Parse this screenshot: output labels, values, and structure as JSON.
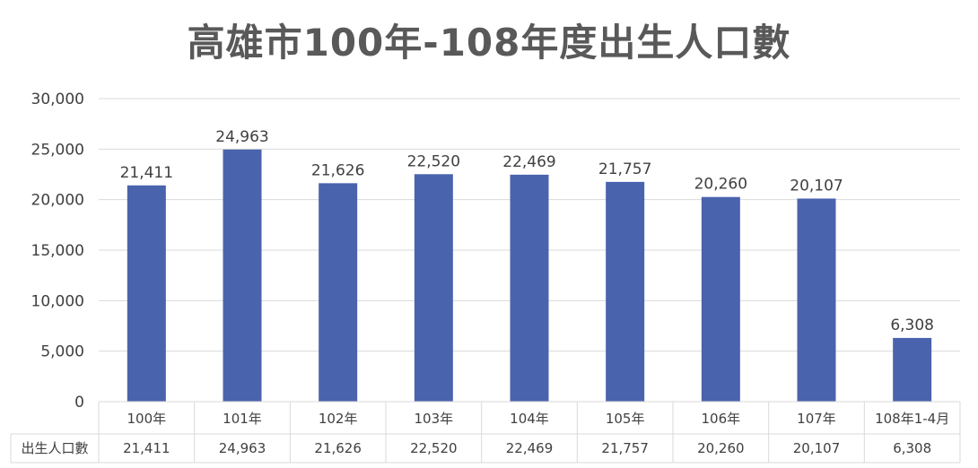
{
  "chart_data": {
    "type": "bar",
    "title": "高雄市100年-108年度出生人口數",
    "categories": [
      "100年",
      "101年",
      "102年",
      "103年",
      "104年",
      "105年",
      "106年",
      "107年",
      "108年1-4月"
    ],
    "series": [
      {
        "name": "出生人口數",
        "values": [
          21411,
          24963,
          21626,
          22520,
          22469,
          21757,
          20260,
          20107,
          6308
        ],
        "color": "#4a63ad"
      }
    ],
    "value_labels": [
      "21,411",
      "24,963",
      "21,626",
      "22,520",
      "22,469",
      "21,757",
      "20,260",
      "20,107",
      "6,308"
    ],
    "ylim": [
      0,
      30000
    ],
    "yticks": [
      0,
      5000,
      10000,
      15000,
      20000,
      25000,
      30000
    ],
    "ytick_labels": [
      "0",
      "5,000",
      "10,000",
      "15,000",
      "20,000",
      "25,000",
      "30,000"
    ],
    "grid": true,
    "legend": "none",
    "data_table": true
  }
}
